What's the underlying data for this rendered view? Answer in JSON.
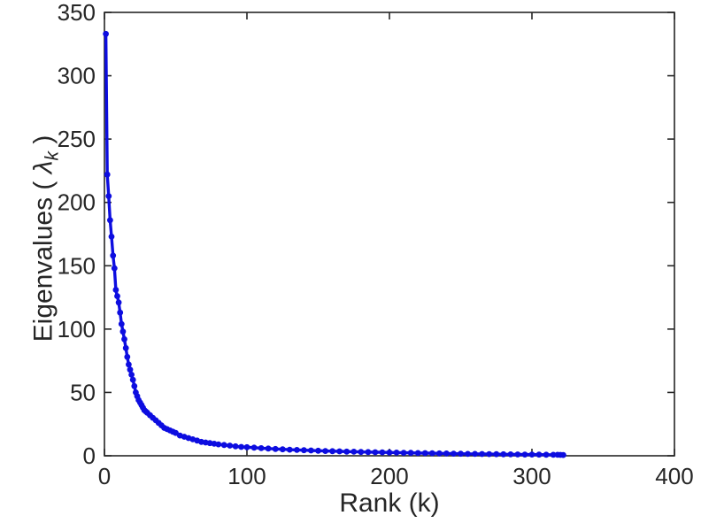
{
  "figure": {
    "background": "#ffffff"
  },
  "chart_data": {
    "type": "line",
    "title": "",
    "xlabel": "Rank (k)",
    "ylabel_prefix": "Eigenvalues ( ",
    "ylabel_lambda": "λ",
    "ylabel_sub": "k",
    "ylabel_suffix": " )",
    "xlim": [
      0,
      400
    ],
    "ylim": [
      0,
      350
    ],
    "xticks": [
      0,
      100,
      200,
      300,
      400
    ],
    "yticks": [
      0,
      50,
      100,
      150,
      200,
      250,
      300,
      350
    ],
    "grid": false,
    "legend": "none",
    "box": true,
    "line_color": "#0d0de0",
    "axis_color": "#262626",
    "marker": "dot",
    "series": [
      {
        "name": "eigenvalues",
        "x": [
          1,
          2,
          3,
          4,
          5,
          6,
          7,
          8,
          9,
          10,
          11,
          12,
          13,
          14,
          15,
          16,
          17,
          18,
          19,
          20,
          21,
          22,
          23,
          24,
          25,
          26,
          27,
          28,
          29,
          30,
          32,
          34,
          36,
          38,
          40,
          42,
          44,
          46,
          48,
          50,
          53,
          56,
          59,
          62,
          65,
          68,
          71,
          74,
          77,
          80,
          84,
          88,
          92,
          96,
          100,
          105,
          110,
          115,
          120,
          125,
          130,
          135,
          140,
          145,
          150,
          155,
          160,
          165,
          170,
          175,
          180,
          185,
          190,
          195,
          200,
          205,
          210,
          215,
          220,
          225,
          230,
          235,
          240,
          245,
          250,
          255,
          260,
          265,
          270,
          275,
          280,
          285,
          290,
          295,
          300,
          305,
          310,
          315,
          318,
          320,
          322
        ],
        "y": [
          333,
          222,
          205,
          186,
          173,
          158,
          148,
          131,
          126,
          121,
          113,
          104,
          98,
          92,
          85,
          78,
          72,
          68,
          64,
          60,
          55,
          50,
          47,
          44,
          42,
          40,
          38,
          36,
          35,
          34,
          32,
          30,
          28,
          26,
          24,
          22,
          21,
          20,
          19,
          18,
          16,
          15,
          14,
          13,
          12,
          11,
          10.5,
          10,
          9.5,
          9,
          8.5,
          8,
          7.5,
          7,
          6.8,
          6.4,
          6,
          5.7,
          5.4,
          5.1,
          4.8,
          4.6,
          4.4,
          4.2,
          4,
          3.8,
          3.6,
          3.5,
          3.3,
          3.2,
          3,
          2.9,
          2.8,
          2.7,
          2.6,
          2.5,
          2.4,
          2.3,
          2.2,
          2.1,
          2,
          1.9,
          1.8,
          1.7,
          1.6,
          1.5,
          1.45,
          1.4,
          1.3,
          1.25,
          1.2,
          1.1,
          1.05,
          1,
          0.95,
          0.9,
          0.85,
          0.8,
          0.75,
          0.7,
          0.65
        ]
      }
    ]
  }
}
